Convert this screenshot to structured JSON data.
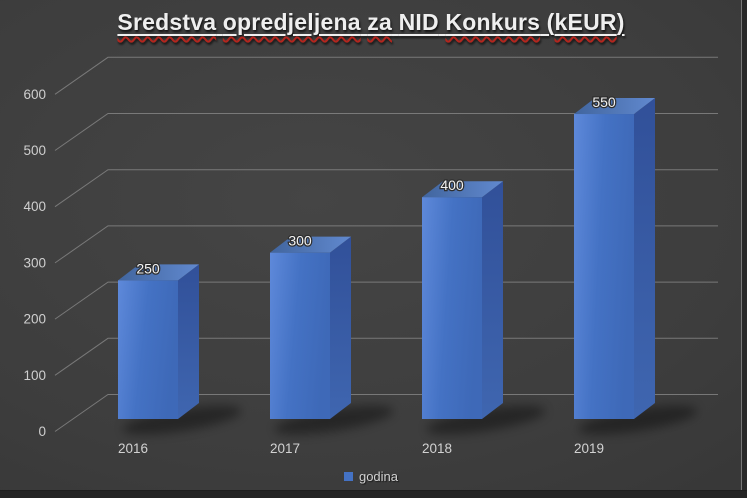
{
  "slide": {
    "title": {
      "text": "Sredstva opredjeljena za NID Konkurs (kEUR)",
      "parts": [
        {
          "text": "Sredstva",
          "misspelled": true
        },
        {
          "text": " ",
          "misspelled": false
        },
        {
          "text": "opredjeljena",
          "misspelled": true
        },
        {
          "text": " ",
          "misspelled": false
        },
        {
          "text": "za",
          "misspelled": true
        },
        {
          "text": " ",
          "misspelled": false
        },
        {
          "text": "NID",
          "misspelled": false
        },
        {
          "text": " ",
          "misspelled": false
        },
        {
          "text": "Konkurs",
          "misspelled": true
        },
        {
          "text": " (",
          "misspelled": false
        },
        {
          "text": "kEUR",
          "misspelled": true
        },
        {
          "text": ")",
          "misspelled": false
        }
      ]
    }
  },
  "chart_data": {
    "type": "bar",
    "style": "3d-column",
    "title": "Sredstva opredjeljena za NID Konkurs (kEUR)",
    "categories": [
      "2016",
      "2017",
      "2018",
      "2019"
    ],
    "series": [
      {
        "name": "godina",
        "values": [
          250,
          300,
          400,
          550
        ]
      }
    ],
    "data_labels": [
      "250",
      "300",
      "400",
      "550"
    ],
    "xlabel": "",
    "ylabel": "",
    "ylim": [
      0,
      600
    ],
    "yticks": [
      0,
      100,
      200,
      300,
      400,
      500,
      600
    ],
    "grid": true,
    "legend_position": "bottom",
    "legend_label": "godina"
  },
  "colors": {
    "bar_front": "#4472c4",
    "bar_front_light": "#5e89da",
    "bar_front_dark": "#3e69b8",
    "bar_top_light": "#6189cf",
    "bar_top_dark": "#41659e",
    "bar_side_light": "#3f66b0",
    "bar_side_dark": "#315099",
    "gridline": "#8c8c8c",
    "axis_label": "#cfcfcf",
    "category_label": "#d2d2d2",
    "data_label": "#f2f2f2",
    "title_text": "#efefef",
    "spellcheck_red": "#b3261e",
    "background_center": "#444444",
    "background_edge": "#2d2d2d"
  }
}
